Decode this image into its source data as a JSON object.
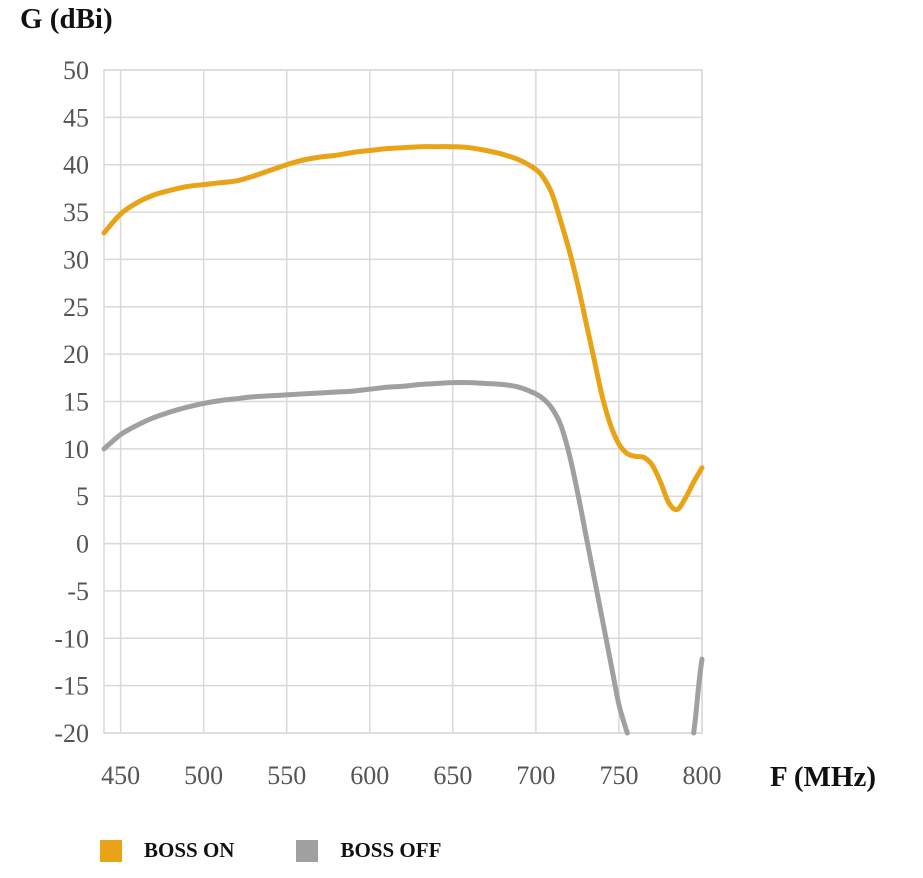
{
  "chart_data": {
    "type": "line",
    "ylabel": "G (dBi)",
    "xlabel": "F (MHz)",
    "xlim": [
      440,
      800
    ],
    "ylim": [
      -20,
      50
    ],
    "xticks": [
      450,
      500,
      550,
      600,
      650,
      700,
      750,
      800
    ],
    "yticks": [
      50,
      45,
      40,
      35,
      30,
      25,
      20,
      15,
      10,
      5,
      0,
      -5,
      -10,
      -15,
      -20
    ],
    "grid": true,
    "legend_position": "bottom-left",
    "series": [
      {
        "name": "BOSS ON",
        "color": "#E8A317",
        "x": [
          440,
          450,
          460,
          470,
          480,
          490,
          500,
          510,
          520,
          530,
          540,
          550,
          560,
          570,
          580,
          590,
          600,
          610,
          620,
          630,
          640,
          650,
          660,
          670,
          680,
          690,
          700,
          705,
          710,
          715,
          720,
          725,
          730,
          735,
          740,
          745,
          750,
          755,
          760,
          765,
          770,
          775,
          780,
          785,
          790,
          795,
          800
        ],
        "y": [
          32.8,
          34.8,
          36.0,
          36.8,
          37.3,
          37.7,
          37.9,
          38.1,
          38.3,
          38.8,
          39.4,
          40.0,
          40.5,
          40.8,
          41.0,
          41.3,
          41.5,
          41.7,
          41.8,
          41.9,
          41.9,
          41.9,
          41.8,
          41.5,
          41.1,
          40.5,
          39.5,
          38.5,
          36.8,
          34.0,
          31.0,
          27.5,
          23.5,
          19.5,
          15.5,
          12.5,
          10.5,
          9.5,
          9.2,
          9.1,
          8.3,
          6.5,
          4.3,
          3.6,
          4.8,
          6.5,
          8.0
        ]
      },
      {
        "name": "BOSS OFF",
        "color": "#A0A0A0",
        "x": [
          440,
          450,
          460,
          470,
          480,
          490,
          500,
          510,
          520,
          530,
          540,
          550,
          560,
          570,
          580,
          590,
          600,
          610,
          620,
          630,
          640,
          650,
          660,
          670,
          680,
          690,
          700,
          705,
          710,
          715,
          720,
          725,
          730,
          735,
          740,
          745,
          750,
          755
        ],
        "y": [
          10.0,
          11.5,
          12.5,
          13.3,
          13.9,
          14.4,
          14.8,
          15.1,
          15.3,
          15.5,
          15.6,
          15.7,
          15.8,
          15.9,
          16.0,
          16.1,
          16.3,
          16.5,
          16.6,
          16.8,
          16.9,
          17.0,
          17.0,
          16.9,
          16.8,
          16.5,
          15.8,
          15.2,
          14.2,
          12.5,
          9.5,
          5.5,
          1.0,
          -3.5,
          -8.0,
          -12.5,
          -17.0,
          -20.0
        ]
      },
      {
        "name": "BOSS OFF",
        "color": "#A0A0A0",
        "x": [
          795,
          796,
          797,
          798,
          799,
          800
        ],
        "y": [
          -20.0,
          -18.5,
          -16.8,
          -15.0,
          -13.5,
          -12.2
        ]
      }
    ]
  }
}
